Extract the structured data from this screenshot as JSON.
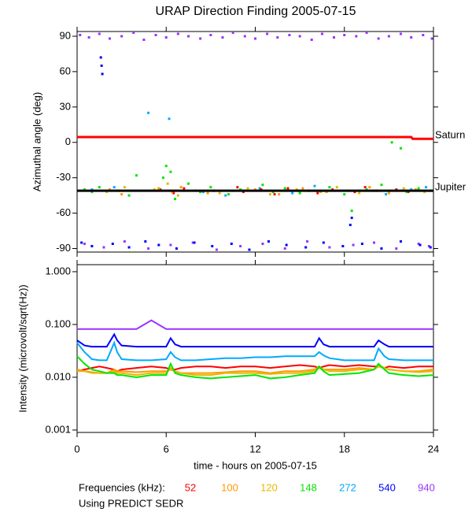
{
  "chart_data": [
    {
      "type": "scatter",
      "title": "URAP Direction Finding  2005-07-15",
      "ylabel": "Azimuthal angle (deg)",
      "xlim": [
        0,
        24
      ],
      "xticks": [
        0,
        6,
        12,
        18,
        24
      ],
      "ylim": [
        -93,
        94
      ],
      "yticks": [
        90,
        60,
        30,
        0,
        -30,
        -60,
        -90
      ],
      "series": [
        {
          "color": "#9933ff",
          "x": [
            0.2,
            0.8,
            1.5,
            2.2,
            3,
            3.8,
            4.5,
            5.3,
            6,
            6.8,
            7.5,
            8.3,
            9,
            9.8,
            10.5,
            11.3,
            12,
            12.8,
            13.5,
            14.3,
            15,
            15.8,
            16.5,
            17.3,
            18,
            18.8,
            19.5,
            20.3,
            21,
            21.8,
            22.5,
            23.3,
            23.9,
            0.5,
            1.8,
            3.2,
            4.8,
            6.3,
            7.8,
            9.4,
            11,
            12.5,
            14,
            15.5,
            17,
            18.6,
            20,
            21.5,
            23,
            23.7
          ],
          "values": [
            91,
            89,
            92,
            88,
            90,
            93,
            87,
            91,
            89,
            92,
            90,
            88,
            91,
            89,
            93,
            90,
            88,
            92,
            89,
            91,
            90,
            87,
            92,
            89,
            91,
            90,
            93,
            88,
            90,
            92,
            89,
            91,
            88,
            -86,
            -89,
            -84,
            -90,
            -87,
            -85,
            -91,
            -88,
            -86,
            -90,
            -84,
            -89,
            -87,
            -85,
            -90,
            -86,
            -88
          ]
        },
        {
          "color": "#0000ff",
          "x": [
            0.3,
            1,
            1.6,
            1.65,
            1.7,
            2.4,
            3.5,
            4.6,
            5.5,
            6.7,
            7.9,
            9.1,
            10.4,
            11.6,
            12.9,
            14.1,
            15.4,
            16.6,
            17.9,
            18.4,
            18.5,
            19.2,
            20.5,
            21.8,
            23.1,
            23.8
          ],
          "values": [
            -85,
            -88,
            72,
            65,
            58,
            -86,
            -89,
            -84,
            -87,
            -90,
            -85,
            -88,
            -86,
            -91,
            -84,
            -87,
            -89,
            -85,
            -88,
            -70,
            -64,
            -86,
            -90,
            -84,
            -87,
            -89
          ]
        },
        {
          "color": "#00aaff",
          "x": [
            1,
            2.5,
            4.8,
            6.2,
            8.5,
            10,
            12.3,
            14.5,
            16,
            19,
            20.8,
            22.5,
            23.5
          ],
          "values": [
            -40,
            -38,
            25,
            20,
            -42,
            -45,
            -39,
            -43,
            -37,
            -41,
            -44,
            -40,
            -38
          ]
        },
        {
          "color": "#ff0000",
          "x": [
            5.6,
            6.5,
            7.2,
            9.2,
            10.8,
            11.2,
            12.4,
            13.3,
            14.2,
            15.6,
            16.2,
            17.2,
            18.7,
            19.4,
            20.2,
            21.5,
            22.3
          ],
          "values": [
            -40,
            -43,
            -39,
            -41,
            -38,
            -42,
            -40,
            -44,
            -39,
            -41,
            -43,
            -40,
            -42,
            -38,
            -41,
            -40,
            -42
          ]
        },
        {
          "color": "#ff9900",
          "x": [
            2.2,
            3,
            5.5,
            6.4,
            7,
            8.8,
            10.5,
            12,
            13.6,
            15.2,
            16.8,
            18.2,
            19.7,
            21,
            22.8
          ],
          "values": [
            -40,
            -44,
            -39,
            -42,
            -38,
            -43,
            -41,
            -40,
            -44,
            -39,
            -42,
            -41,
            -38,
            -43,
            -40
          ]
        },
        {
          "color": "#e6b800",
          "x": [
            2,
            3.2,
            5.2,
            6.1,
            6.8,
            8,
            9.6,
            11.5,
            13,
            14.8,
            16.4,
            17.5,
            19,
            20,
            22,
            23.4
          ],
          "values": [
            -42,
            -38,
            -40,
            -35,
            -45,
            -41,
            -43,
            -39,
            -44,
            -40,
            -42,
            -38,
            -43,
            -41,
            -39,
            -42
          ]
        },
        {
          "color": "#00e600",
          "x": [
            0.5,
            1,
            1.5,
            2.8,
            3.5,
            4,
            5.8,
            6,
            6.3,
            6.6,
            7.5,
            8.3,
            9,
            10.2,
            11,
            12.5,
            13.2,
            14,
            15,
            16,
            17,
            18,
            18.5,
            19.5,
            20.5,
            21.2,
            21.8,
            22.2,
            23,
            23.8
          ],
          "values": [
            -40,
            -42,
            -38,
            -41,
            -45,
            -28,
            -30,
            -20,
            -25,
            -48,
            -35,
            -42,
            -38,
            -44,
            -40,
            -36,
            -42,
            -39,
            -43,
            -41,
            -38,
            -44,
            -58,
            -40,
            -36,
            0,
            -5,
            -42,
            -39,
            -41
          ]
        }
      ],
      "reference_lines": [
        {
          "label": "Saturn",
          "color": "#ff0000",
          "x": [
            0,
            22.5,
            22.6,
            24
          ],
          "values": [
            4.5,
            4.5,
            3,
            3
          ]
        },
        {
          "label": "Jupiter",
          "color": "#000000",
          "x": [
            0,
            24
          ],
          "values": [
            -41,
            -41
          ]
        }
      ]
    },
    {
      "type": "line",
      "log_scale": true,
      "ylabel": "Intensity (microvolt/sqrt(Hz))",
      "xlabel": "time - hours on 2005-07-15",
      "xlim": [
        0,
        24
      ],
      "xticks": [
        0,
        6,
        12,
        18,
        24
      ],
      "ylim": [
        0.0009,
        1.36
      ],
      "yticks": [
        {
          "value": 1,
          "label": "1.000"
        },
        {
          "value": 0.1,
          "label": "0.100"
        },
        {
          "value": 0.01,
          "label": "0.010"
        },
        {
          "value": 0.001,
          "label": "0.001"
        }
      ],
      "legend_title": "Frequencies (kHz):",
      "footer": "Using PREDICT SEDR",
      "x": [
        0,
        0.5,
        1,
        1.5,
        2,
        2.5,
        2.7,
        3,
        4,
        5,
        6,
        6.3,
        6.6,
        7,
        8,
        9,
        10,
        11,
        12,
        13,
        14,
        15,
        16,
        16.3,
        16.6,
        17,
        18,
        19,
        20,
        20.3,
        20.7,
        21,
        22,
        23,
        24
      ],
      "series": [
        {
          "name": "52",
          "color": "#ff0000",
          "values": [
            0.013,
            0.014,
            0.015,
            0.016,
            0.015,
            0.014,
            0.013,
            0.014,
            0.015,
            0.016,
            0.015,
            0.014,
            0.014,
            0.015,
            0.016,
            0.016,
            0.015,
            0.016,
            0.016,
            0.015,
            0.016,
            0.017,
            0.016,
            0.015,
            0.016,
            0.017,
            0.016,
            0.017,
            0.016,
            0.016,
            0.015,
            0.016,
            0.015,
            0.016,
            0.016
          ]
        },
        {
          "name": "100",
          "color": "#ff9900",
          "values": [
            0.014,
            0.013,
            0.0125,
            0.012,
            0.012,
            0.014,
            0.013,
            0.013,
            0.0125,
            0.013,
            0.013,
            0.014,
            0.013,
            0.012,
            0.012,
            0.012,
            0.0125,
            0.013,
            0.013,
            0.012,
            0.013,
            0.013,
            0.014,
            0.016,
            0.014,
            0.014,
            0.014,
            0.015,
            0.014,
            0.017,
            0.015,
            0.014,
            0.013,
            0.013,
            0.014
          ]
        },
        {
          "name": "120",
          "color": "#e6b800",
          "values": [
            0.013,
            0.013,
            0.012,
            0.012,
            0.012,
            0.013,
            0.012,
            0.012,
            0.011,
            0.012,
            0.012,
            0.015,
            0.013,
            0.012,
            0.011,
            0.011,
            0.012,
            0.012,
            0.012,
            0.0115,
            0.012,
            0.012,
            0.013,
            0.015,
            0.014,
            0.013,
            0.013,
            0.014,
            0.014,
            0.016,
            0.015,
            0.014,
            0.013,
            0.0125,
            0.013
          ]
        },
        {
          "name": "148",
          "color": "#00e600",
          "values": [
            0.025,
            0.018,
            0.014,
            0.013,
            0.012,
            0.012,
            0.011,
            0.011,
            0.01,
            0.011,
            0.011,
            0.018,
            0.012,
            0.011,
            0.01,
            0.0095,
            0.01,
            0.0105,
            0.011,
            0.0095,
            0.01,
            0.011,
            0.012,
            0.016,
            0.013,
            0.011,
            0.0115,
            0.012,
            0.014,
            0.018,
            0.014,
            0.012,
            0.011,
            0.0105,
            0.011
          ]
        },
        {
          "name": "272",
          "color": "#00aaff",
          "values": [
            0.045,
            0.03,
            0.022,
            0.021,
            0.021,
            0.045,
            0.03,
            0.022,
            0.021,
            0.021,
            0.022,
            0.03,
            0.024,
            0.021,
            0.021,
            0.022,
            0.023,
            0.023,
            0.024,
            0.024,
            0.025,
            0.025,
            0.025,
            0.03,
            0.026,
            0.023,
            0.021,
            0.021,
            0.021,
            0.035,
            0.025,
            0.022,
            0.021,
            0.021,
            0.021
          ]
        },
        {
          "name": "540",
          "color": "#0000ff",
          "values": [
            0.05,
            0.04,
            0.038,
            0.038,
            0.038,
            0.065,
            0.05,
            0.04,
            0.038,
            0.038,
            0.038,
            0.055,
            0.042,
            0.038,
            0.038,
            0.038,
            0.038,
            0.038,
            0.038,
            0.038,
            0.038,
            0.038,
            0.038,
            0.055,
            0.042,
            0.038,
            0.038,
            0.038,
            0.038,
            0.05,
            0.042,
            0.038,
            0.038,
            0.038,
            0.038
          ]
        },
        {
          "name": "940",
          "color": "#9933ff",
          "values": [
            0.082,
            0.082,
            0.082,
            0.082,
            0.082,
            0.082,
            0.082,
            0.082,
            0.082,
            0.12,
            0.082,
            0.082,
            0.082,
            0.082,
            0.082,
            0.082,
            0.082,
            0.082,
            0.082,
            0.082,
            0.082,
            0.082,
            0.082,
            0.082,
            0.082,
            0.082,
            0.082,
            0.082,
            0.082,
            0.082,
            0.082,
            0.082,
            0.082,
            0.082,
            0.082
          ]
        }
      ]
    }
  ]
}
